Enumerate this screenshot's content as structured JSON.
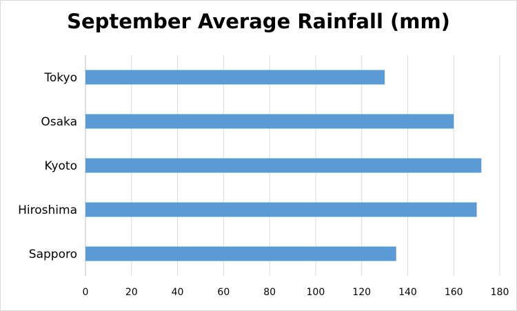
{
  "chart_data": {
    "type": "bar",
    "orientation": "horizontal",
    "title": "September Average Rainfall (mm)",
    "xlabel": "",
    "ylabel": "",
    "categories": [
      "Tokyo",
      "Osaka",
      "Kyoto",
      "Hiroshima",
      "Sapporo"
    ],
    "values": [
      130,
      160,
      172,
      170,
      135
    ],
    "xlim": [
      0,
      180
    ],
    "x_ticks": [
      0,
      20,
      40,
      60,
      80,
      100,
      120,
      140,
      160,
      180
    ],
    "grid": "vertical",
    "legend": "none",
    "bar_color": "#5b9bd5",
    "grid_color": "#d9d9d9"
  }
}
